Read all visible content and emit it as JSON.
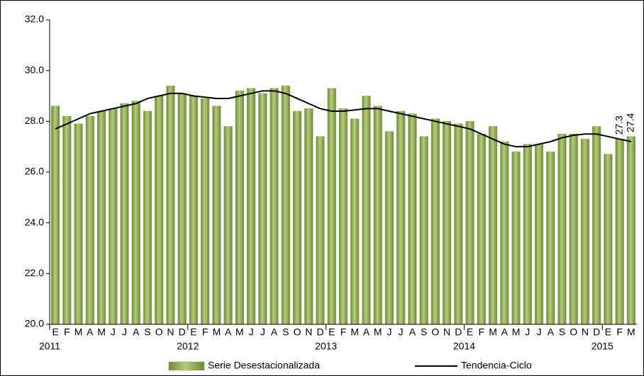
{
  "chart_data": {
    "type": "bar_line",
    "categories": [
      "E",
      "F",
      "M",
      "A",
      "M",
      "J",
      "J",
      "A",
      "S",
      "O",
      "N",
      "D",
      "E",
      "F",
      "M",
      "A",
      "M",
      "J",
      "J",
      "A",
      "S",
      "O",
      "N",
      "D",
      "E",
      "F",
      "M",
      "A",
      "M",
      "J",
      "J",
      "A",
      "S",
      "O",
      "N",
      "D",
      "E",
      "F",
      "M",
      "A",
      "M",
      "J",
      "J",
      "A",
      "S",
      "O",
      "N",
      "D",
      "E",
      "F",
      "M"
    ],
    "years": [
      "2011",
      null,
      null,
      null,
      null,
      null,
      null,
      null,
      null,
      null,
      null,
      null,
      "2012",
      null,
      null,
      null,
      null,
      null,
      null,
      null,
      null,
      null,
      null,
      null,
      "2013",
      null,
      null,
      null,
      null,
      null,
      null,
      null,
      null,
      null,
      null,
      null,
      "2014",
      null,
      null,
      null,
      null,
      null,
      null,
      null,
      null,
      null,
      null,
      null,
      "2015",
      null,
      null
    ],
    "series": [
      {
        "name": "Serie Desestacionalizada",
        "type": "bar",
        "color": "#8aa64a",
        "values": [
          28.6,
          28.2,
          27.9,
          28.2,
          28.4,
          28.5,
          28.7,
          28.8,
          28.4,
          29.0,
          29.4,
          29.1,
          29.0,
          28.9,
          28.6,
          27.8,
          29.2,
          29.3,
          29.1,
          29.3,
          29.4,
          28.4,
          28.5,
          27.4,
          29.3,
          28.5,
          28.1,
          29.0,
          28.6,
          27.6,
          28.4,
          28.3,
          27.4,
          28.1,
          28.0,
          27.9,
          28.0,
          27.5,
          27.8,
          27.2,
          26.8,
          27.1,
          27.1,
          26.8,
          27.5,
          27.5,
          27.3,
          27.8,
          26.7,
          27.3,
          27.4
        ],
        "value_labels": [
          null,
          null,
          null,
          null,
          null,
          null,
          null,
          null,
          null,
          null,
          null,
          null,
          null,
          null,
          null,
          null,
          null,
          null,
          null,
          null,
          null,
          null,
          null,
          null,
          null,
          null,
          null,
          null,
          null,
          null,
          null,
          null,
          null,
          null,
          null,
          null,
          null,
          null,
          null,
          null,
          null,
          null,
          null,
          null,
          null,
          null,
          null,
          null,
          null,
          "27.3",
          "27.4"
        ]
      },
      {
        "name": "Tendencia-Ciclo",
        "type": "line",
        "color": "#000000",
        "values": [
          27.7,
          27.9,
          28.1,
          28.3,
          28.4,
          28.5,
          28.6,
          28.7,
          28.9,
          29.0,
          29.1,
          29.1,
          29.0,
          28.95,
          28.9,
          28.9,
          29.0,
          29.1,
          29.2,
          29.2,
          29.1,
          28.9,
          28.7,
          28.5,
          28.4,
          28.4,
          28.45,
          28.5,
          28.5,
          28.4,
          28.3,
          28.2,
          28.1,
          28.0,
          27.9,
          27.8,
          27.7,
          27.5,
          27.3,
          27.1,
          27.0,
          27.0,
          27.1,
          27.2,
          27.35,
          27.45,
          27.5,
          27.5,
          27.4,
          27.3,
          27.2
        ]
      }
    ],
    "ylim": [
      20,
      32
    ],
    "yticks": [
      {
        "value": 20,
        "label": "20.0"
      },
      {
        "value": 22,
        "label": "22.0"
      },
      {
        "value": 24,
        "label": "24.0"
      },
      {
        "value": 26,
        "label": "26.0"
      },
      {
        "value": 28,
        "label": "28.0"
      },
      {
        "value": 30,
        "label": "30.0"
      },
      {
        "value": 32,
        "label": "32.0"
      }
    ],
    "grid": false,
    "legend": "bottom"
  }
}
